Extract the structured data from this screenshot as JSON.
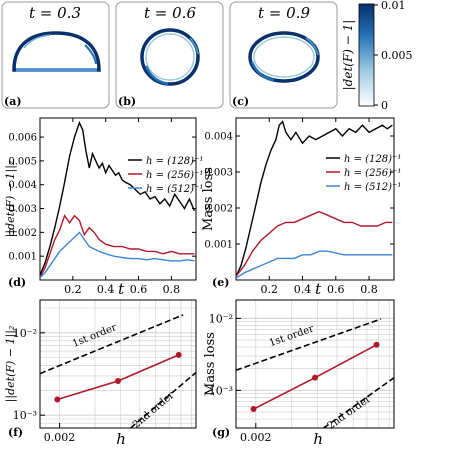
{
  "colors": {
    "black": "#000000",
    "red": "#b2182b",
    "blue": "#3a86d6",
    "grid": "#cccccc",
    "cbar_low": "#ffffff",
    "cbar_high": "#08306b"
  },
  "panel_labels": {
    "a": "(a)",
    "b": "(b)",
    "c": "(c)",
    "d": "(d)",
    "e": "(e)",
    "f": "(f)",
    "g": "(g)"
  },
  "snapshots": [
    {
      "label": "t = 0.3",
      "shape": "cap"
    },
    {
      "label": "t = 0.6",
      "shape": "circle"
    },
    {
      "label": "t = 0.9",
      "shape": "oval"
    }
  ],
  "colorbar": {
    "label": "|det(F) − 1|",
    "ticks": [
      "0.01",
      "0.005",
      "0"
    ],
    "range": [
      0,
      0.01
    ]
  },
  "legend": {
    "entries": [
      "h = (128)⁻¹",
      "h = (256)⁻¹",
      "h = (512)⁻¹"
    ]
  },
  "order_labels": {
    "first": "1st order",
    "second": "2nd order"
  },
  "chart_data": [
    {
      "id": "d",
      "type": "line",
      "ylabel": "||det(F) − 1||₂",
      "xlabel": "t",
      "xlim": [
        0,
        0.95
      ],
      "ylim": [
        0,
        0.0068
      ],
      "xticks": [
        "0.2",
        "0.4",
        "0.6",
        "0.8"
      ],
      "yticks": [
        "0.001",
        "0.002",
        "0.003",
        "0.004",
        "0.005",
        "0.006"
      ],
      "series": [
        {
          "name": "h = (128)⁻¹",
          "color": "#000000",
          "x": [
            0.0,
            0.03,
            0.06,
            0.09,
            0.12,
            0.15,
            0.18,
            0.21,
            0.24,
            0.26,
            0.28,
            0.3,
            0.32,
            0.34,
            0.36,
            0.38,
            0.4,
            0.42,
            0.44,
            0.46,
            0.48,
            0.5,
            0.52,
            0.55,
            0.58,
            0.61,
            0.64,
            0.67,
            0.7,
            0.73,
            0.76,
            0.79,
            0.82,
            0.85,
            0.88,
            0.91,
            0.94
          ],
          "y": [
            0.0002,
            0.0007,
            0.0014,
            0.0022,
            0.0031,
            0.0041,
            0.0052,
            0.006,
            0.0066,
            0.0063,
            0.0054,
            0.0047,
            0.0053,
            0.005,
            0.0047,
            0.0049,
            0.0045,
            0.0048,
            0.0046,
            0.0044,
            0.0045,
            0.0042,
            0.0041,
            0.004,
            0.0038,
            0.0036,
            0.0037,
            0.0034,
            0.0035,
            0.0032,
            0.0034,
            0.0031,
            0.0036,
            0.0033,
            0.003,
            0.0034,
            0.0029
          ]
        },
        {
          "name": "h = (256)⁻¹",
          "color": "#b2182b",
          "x": [
            0.0,
            0.03,
            0.06,
            0.09,
            0.12,
            0.15,
            0.18,
            0.21,
            0.24,
            0.27,
            0.3,
            0.33,
            0.36,
            0.4,
            0.45,
            0.5,
            0.55,
            0.6,
            0.65,
            0.7,
            0.75,
            0.8,
            0.85,
            0.9,
            0.94
          ],
          "y": [
            0.0001,
            0.0005,
            0.0011,
            0.0017,
            0.0021,
            0.0027,
            0.0024,
            0.0027,
            0.0025,
            0.0019,
            0.0022,
            0.002,
            0.0017,
            0.0015,
            0.0014,
            0.0014,
            0.0013,
            0.0013,
            0.0012,
            0.0012,
            0.0011,
            0.0012,
            0.0011,
            0.0011,
            0.0011
          ]
        },
        {
          "name": "h = (512)⁻¹",
          "color": "#3a86d6",
          "x": [
            0.0,
            0.03,
            0.06,
            0.09,
            0.12,
            0.15,
            0.18,
            0.21,
            0.24,
            0.27,
            0.3,
            0.33,
            0.36,
            0.4,
            0.45,
            0.5,
            0.55,
            0.6,
            0.65,
            0.7,
            0.75,
            0.8,
            0.85,
            0.9,
            0.94
          ],
          "y": [
            0.0001,
            0.0003,
            0.0006,
            0.0009,
            0.0012,
            0.0014,
            0.0016,
            0.0018,
            0.002,
            0.0017,
            0.0014,
            0.0013,
            0.0012,
            0.0011,
            0.001,
            0.00095,
            0.0009,
            0.0009,
            0.00085,
            0.0009,
            0.00085,
            0.0008,
            0.0008,
            0.00085,
            0.0008
          ]
        }
      ]
    },
    {
      "id": "e",
      "type": "line",
      "ylabel": "Mass loss",
      "xlabel": "t",
      "xlim": [
        0,
        0.95
      ],
      "ylim": [
        0,
        0.0045
      ],
      "xticks": [
        "0.2",
        "0.4",
        "0.6",
        "0.8"
      ],
      "yticks": [
        "0.001",
        "0.002",
        "0.003",
        "0.004"
      ],
      "series": [
        {
          "name": "h = (128)⁻¹",
          "color": "#000000",
          "x": [
            0.0,
            0.03,
            0.06,
            0.09,
            0.12,
            0.15,
            0.18,
            0.21,
            0.24,
            0.26,
            0.28,
            0.3,
            0.33,
            0.36,
            0.4,
            0.44,
            0.48,
            0.52,
            0.56,
            0.6,
            0.64,
            0.68,
            0.72,
            0.76,
            0.8,
            0.84,
            0.88,
            0.91,
            0.94
          ],
          "y": [
            0.0001,
            0.0004,
            0.0009,
            0.0015,
            0.0021,
            0.0027,
            0.0032,
            0.0036,
            0.0039,
            0.0043,
            0.0044,
            0.0041,
            0.0039,
            0.0041,
            0.0038,
            0.004,
            0.0039,
            0.004,
            0.0041,
            0.0042,
            0.004,
            0.0042,
            0.0041,
            0.0043,
            0.0041,
            0.0042,
            0.0043,
            0.0042,
            0.0043
          ]
        },
        {
          "name": "h = (256)⁻¹",
          "color": "#b2182b",
          "x": [
            0.0,
            0.05,
            0.1,
            0.15,
            0.2,
            0.25,
            0.3,
            0.35,
            0.4,
            0.45,
            0.5,
            0.55,
            0.6,
            0.65,
            0.7,
            0.75,
            0.8,
            0.85,
            0.9,
            0.94
          ],
          "y": [
            0.0001,
            0.0004,
            0.0008,
            0.0011,
            0.0013,
            0.0015,
            0.0016,
            0.0016,
            0.0017,
            0.0018,
            0.0019,
            0.0018,
            0.0017,
            0.0016,
            0.0016,
            0.0015,
            0.0015,
            0.0015,
            0.0016,
            0.0016
          ]
        },
        {
          "name": "h = (512)⁻¹",
          "color": "#3a86d6",
          "x": [
            0.0,
            0.05,
            0.1,
            0.15,
            0.2,
            0.25,
            0.3,
            0.35,
            0.4,
            0.45,
            0.5,
            0.55,
            0.6,
            0.65,
            0.7,
            0.75,
            0.8,
            0.85,
            0.9,
            0.94
          ],
          "y": [
            5e-05,
            0.0002,
            0.0003,
            0.0004,
            0.0005,
            0.0006,
            0.0006,
            0.0006,
            0.0007,
            0.0007,
            0.0008,
            0.0008,
            0.00075,
            0.0007,
            0.0007,
            0.0007,
            0.0007,
            0.0007,
            0.0007,
            0.0007
          ]
        }
      ]
    },
    {
      "id": "f",
      "type": "scatter",
      "ylabel": "||det(F) − 1||₂",
      "xlabel": "h",
      "xscale": "log",
      "yscale": "log",
      "xlim": [
        0.0016,
        0.0095
      ],
      "ylim": [
        0.0007,
        0.025
      ],
      "xticks": [
        {
          "v": 0.002,
          "label": "0.002"
        }
      ],
      "yticks": [
        {
          "v": 0.001,
          "label": "10⁻³"
        },
        {
          "v": 0.01,
          "label": "10⁻²"
        }
      ],
      "series": [
        {
          "name": "",
          "color": "#b2182b",
          "x": [
            0.00195,
            0.0039,
            0.0078
          ],
          "y": [
            0.00155,
            0.0026,
            0.0054
          ]
        }
      ],
      "references": [
        {
          "label": "1st order",
          "x": [
            0.0016,
            0.0082
          ],
          "y": [
            0.0032,
            0.0165
          ]
        },
        {
          "label": "2nd order",
          "x": [
            0.0045,
            0.0095
          ],
          "y": [
            0.0007,
            0.0033
          ]
        }
      ]
    },
    {
      "id": "g",
      "type": "scatter",
      "ylabel": "Mass loss",
      "xlabel": "h",
      "xscale": "log",
      "yscale": "log",
      "xlim": [
        0.0016,
        0.0095
      ],
      "ylim": [
        0.0003,
        0.018
      ],
      "xticks": [
        {
          "v": 0.002,
          "label": "0.002"
        }
      ],
      "yticks": [
        {
          "v": 0.001,
          "label": "10⁻³"
        },
        {
          "v": 0.01,
          "label": "10⁻²"
        }
      ],
      "series": [
        {
          "name": "",
          "color": "#b2182b",
          "x": [
            0.00195,
            0.0039,
            0.0078
          ],
          "y": [
            0.00055,
            0.0015,
            0.0043
          ]
        }
      ],
      "references": [
        {
          "label": "1st order",
          "x": [
            0.0016,
            0.0082
          ],
          "y": [
            0.0019,
            0.0098
          ]
        },
        {
          "label": "2nd order",
          "x": [
            0.0043,
            0.0095
          ],
          "y": [
            0.0003,
            0.0015
          ]
        }
      ]
    }
  ]
}
